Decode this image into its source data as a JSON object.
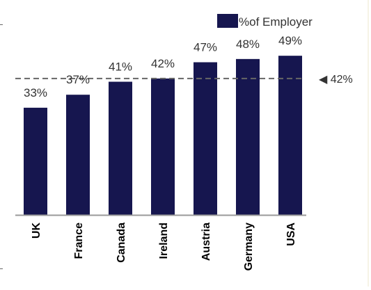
{
  "chart_data": {
    "type": "bar",
    "categories": [
      "UK",
      "France",
      "Canada",
      "Ireland",
      "Austria",
      "Germany",
      "USA"
    ],
    "series": [
      {
        "name": "%of Employer",
        "values": [
          33,
          37,
          41,
          42,
          47,
          48,
          49
        ]
      }
    ],
    "value_labels": [
      "33%",
      "37%",
      "41%",
      "42%",
      "47%",
      "48%",
      "49%"
    ],
    "reference_line": {
      "value": 42,
      "label": "◀ 42%",
      "style": "dashed"
    },
    "legend": {
      "position": "top-right",
      "label": "%of Employer"
    },
    "ylim": [
      0,
      55
    ],
    "grid": false,
    "colors": {
      "bar": "#16164f",
      "reference": "#666666",
      "axis": "#9a9a9a",
      "text": "#333333",
      "category_text": "#000000"
    }
  }
}
